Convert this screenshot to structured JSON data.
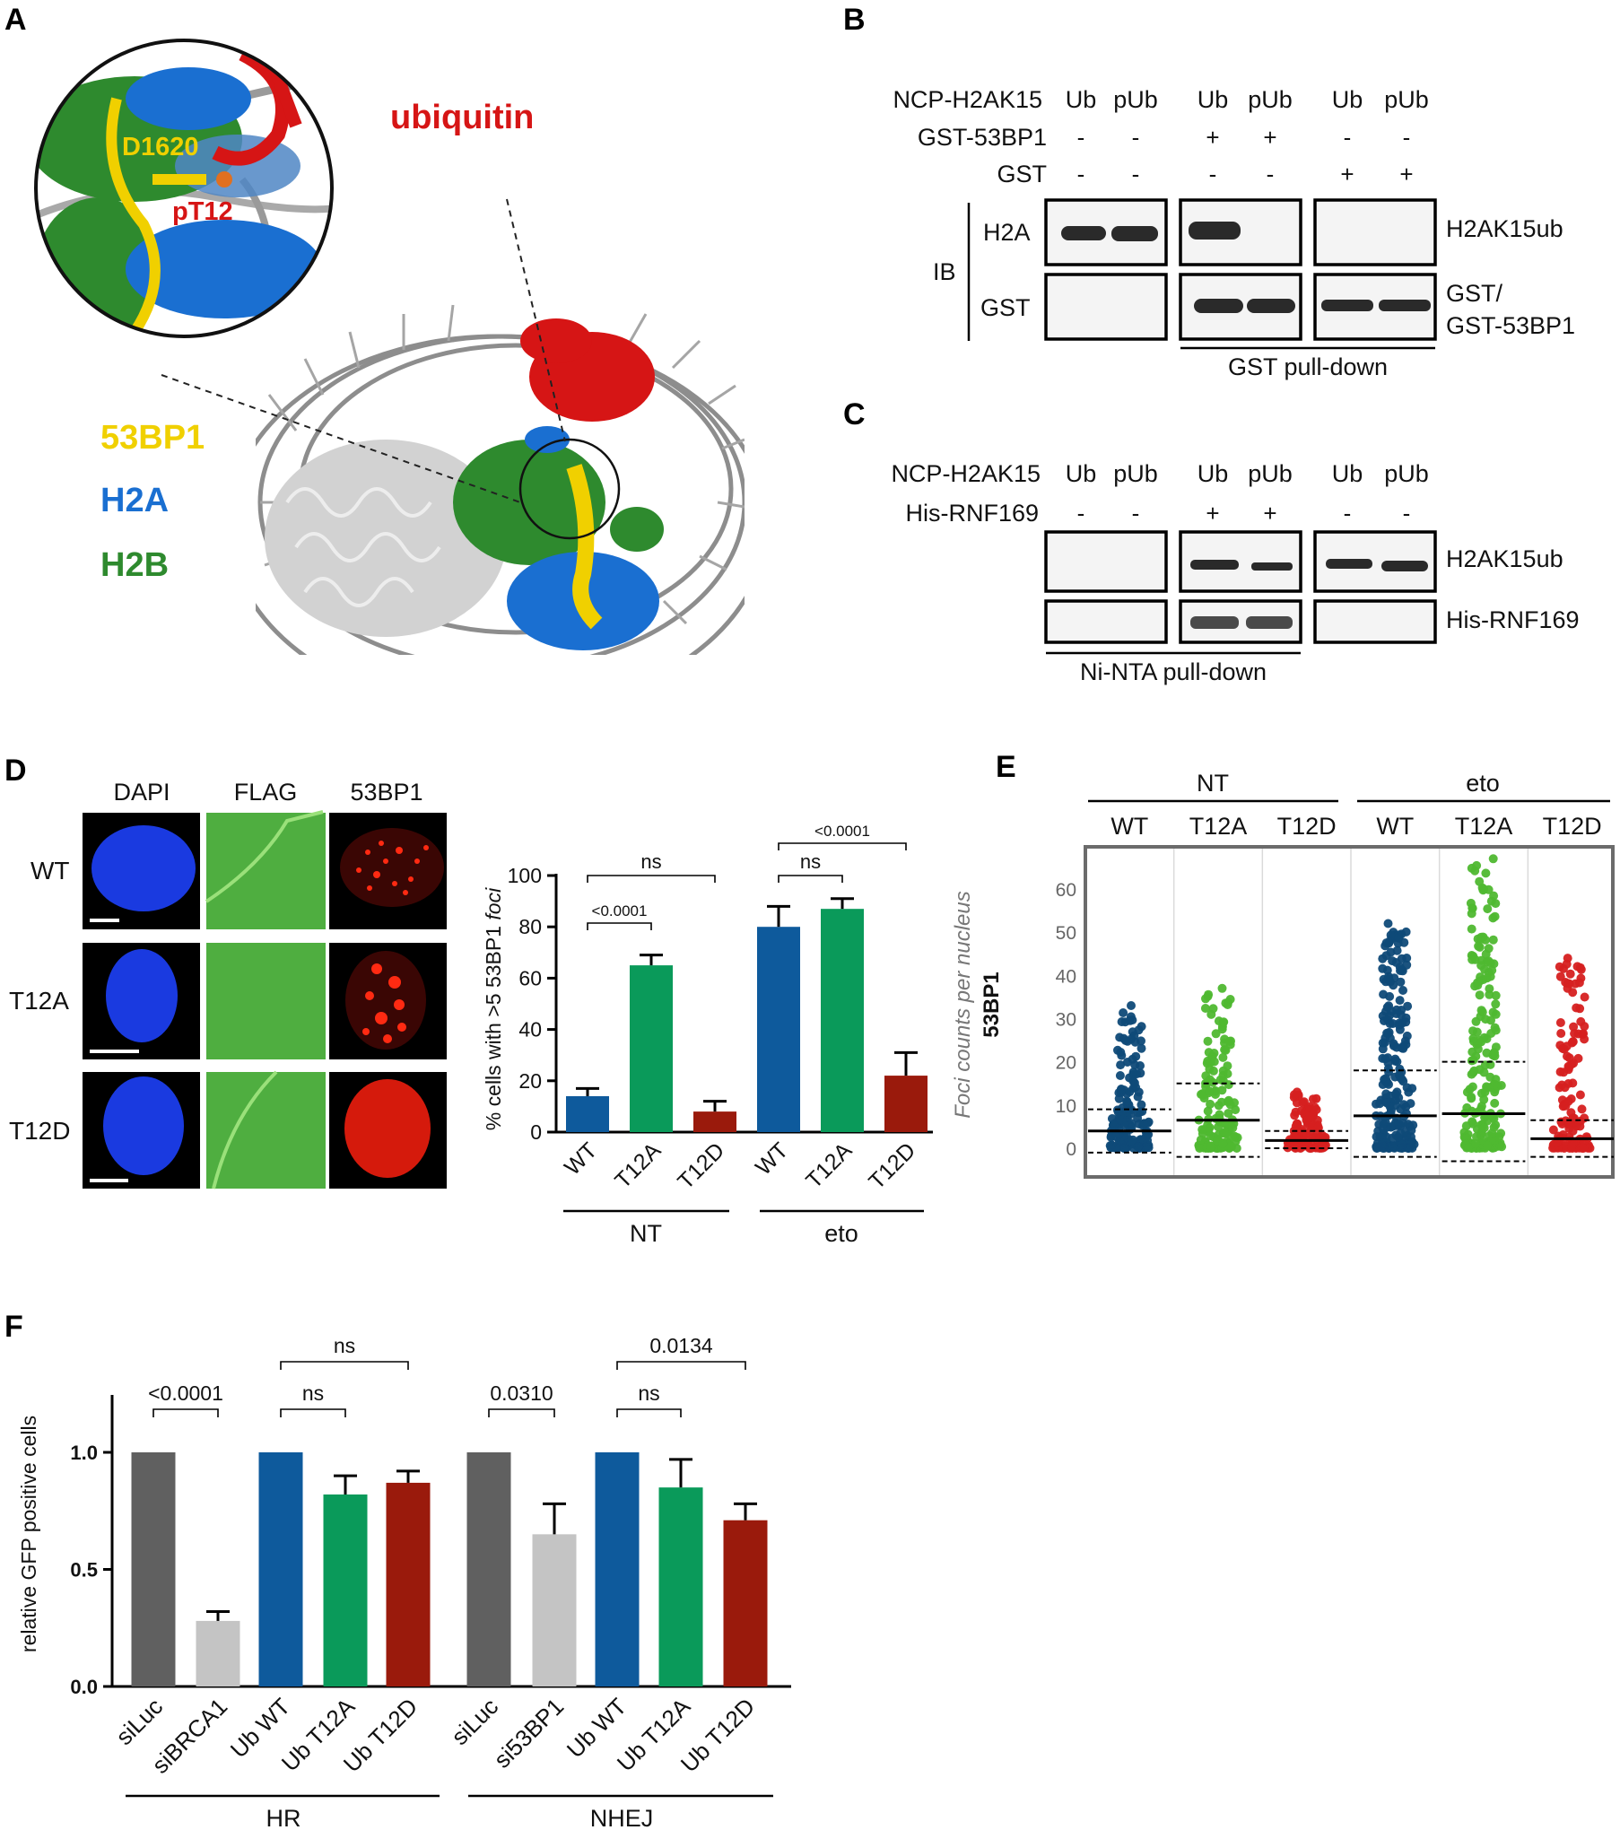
{
  "panels": {
    "A": "A",
    "B": "B",
    "C": "C",
    "D": "D",
    "E": "E",
    "F": "F"
  },
  "panel_a": {
    "labels": {
      "ubiquitin": "ubiquitin",
      "d1620": "D1620",
      "pt12": "pT12"
    },
    "legend": [
      {
        "label": "53BP1",
        "color": "#f0d000"
      },
      {
        "label": "H2A",
        "color": "#1a6fd1"
      },
      {
        "label": "H2B",
        "color": "#2e8a2e"
      }
    ],
    "colors": {
      "ubiquitin": "#d61515",
      "h2a": "#1a6fd1",
      "h2b": "#2e8a2e",
      "bp53": "#f0d000",
      "dna": "#8a8a8a"
    }
  },
  "panel_b": {
    "row_headers": [
      "NCP-H2AK15",
      "GST-53BP1",
      "GST"
    ],
    "lanes": [
      "Ub",
      "pUb",
      "Ub",
      "pUb",
      "Ub",
      "pUb"
    ],
    "gst53bp1_signs": [
      "-",
      "-",
      "+",
      "+",
      "-",
      "-"
    ],
    "gst_signs": [
      "-",
      "-",
      "-",
      "-",
      "+",
      "+"
    ],
    "ib_label": "IB",
    "blot_row_labels": [
      "H2A",
      "GST"
    ],
    "right_labels": [
      "H2AK15ub",
      "GST/",
      "GST-53BP1"
    ],
    "footer": "GST pull-down"
  },
  "panel_c": {
    "row_headers": [
      "NCP-H2AK15",
      "His-RNF169"
    ],
    "lanes": [
      "Ub",
      "pUb",
      "Ub",
      "pUb",
      "Ub",
      "pUb"
    ],
    "rnf169_signs": [
      "-",
      "-",
      "+",
      "+",
      "-",
      "-"
    ],
    "right_labels": [
      "H2AK15ub",
      "His-RNF169"
    ],
    "footer": "Ni-NTA pull-down"
  },
  "panel_d": {
    "columns": [
      "DAPI",
      "FLAG",
      "53BP1"
    ],
    "rows": [
      "WT",
      "T12A",
      "T12D"
    ],
    "colors": {
      "dapi": "#1a3ae0",
      "flag": "#5bbf4a",
      "bp53": "#d51a0c"
    },
    "chart_data": {
      "type": "bar",
      "ylabel": "% cells with >5 53BP1 foci",
      "ylabel_main": "% cells with >5 53BP1 ",
      "ylabel_italic": "foci",
      "ylim": [
        0,
        100
      ],
      "yticks": [
        0,
        20,
        40,
        60,
        80,
        100
      ],
      "categories": [
        "WT",
        "T12A",
        "T12D",
        "WT",
        "T12A",
        "T12D"
      ],
      "values": [
        14,
        65,
        8,
        80,
        87,
        22
      ],
      "errors": [
        3,
        4,
        4,
        8,
        4,
        9
      ],
      "colors": [
        "#0e5a9c",
        "#0a9a5a",
        "#9a1a0c",
        "#0e5a9c",
        "#0a9a5a",
        "#9a1a0c"
      ],
      "groups": [
        "NT",
        "eto"
      ],
      "annotations": [
        "ns",
        "<0.0001",
        "<0.0001",
        "ns"
      ]
    }
  },
  "panel_e": {
    "chart_data": {
      "type": "scatter",
      "ylabel_bold": "53BP1",
      "ylabel_rest": "Foci counts per nucleus",
      "ylim": [
        -3,
        66
      ],
      "yticks": [
        0,
        10,
        20,
        30,
        40,
        50,
        60
      ],
      "groups": [
        "NT",
        "eto"
      ],
      "categories": [
        "WT",
        "T12A",
        "T12D",
        "WT",
        "T12A",
        "T12D"
      ],
      "colors": [
        "#0f4a78",
        "#4fb830",
        "#d62020",
        "#0f4a78",
        "#4fb830",
        "#d62020"
      ],
      "medians": [
        4,
        6.5,
        1.8,
        7.5,
        8,
        2.2
      ],
      "sd_upper": [
        9,
        15,
        4,
        18,
        20,
        6.5
      ],
      "sd_lower": [
        -1,
        -2,
        0,
        -2,
        -3,
        -2
      ],
      "max_values": [
        33,
        37,
        13,
        52,
        67,
        44
      ]
    }
  },
  "panel_f": {
    "chart_data": {
      "type": "bar",
      "ylabel": "relative GFP positive cells",
      "ylim": [
        0,
        1.2
      ],
      "yticks": [
        "0.0",
        "0.5",
        "1.0"
      ],
      "ytick_values": [
        0.0,
        0.5,
        1.0
      ],
      "categories": [
        "siLuc",
        "siBRCA1",
        "Ub WT",
        "Ub T12A",
        "Ub T12D",
        "siLuc",
        "si53BP1",
        "Ub WT",
        "Ub T12A",
        "Ub T12D"
      ],
      "values": [
        1.0,
        0.28,
        1.0,
        0.82,
        0.87,
        1.0,
        0.65,
        1.0,
        0.85,
        0.71
      ],
      "errors": [
        0,
        0.04,
        0,
        0.08,
        0.05,
        0,
        0.13,
        0,
        0.12,
        0.07
      ],
      "colors": [
        "#606060",
        "#c4c4c4",
        "#0e5a9c",
        "#0a9a5a",
        "#9a1a0c",
        "#606060",
        "#c4c4c4",
        "#0e5a9c",
        "#0a9a5a",
        "#9a1a0c"
      ],
      "groups": [
        "HR",
        "NHEJ"
      ],
      "annotations": [
        "<0.0001",
        "ns",
        "ns",
        "0.0310",
        "ns",
        "0.0134"
      ]
    }
  }
}
